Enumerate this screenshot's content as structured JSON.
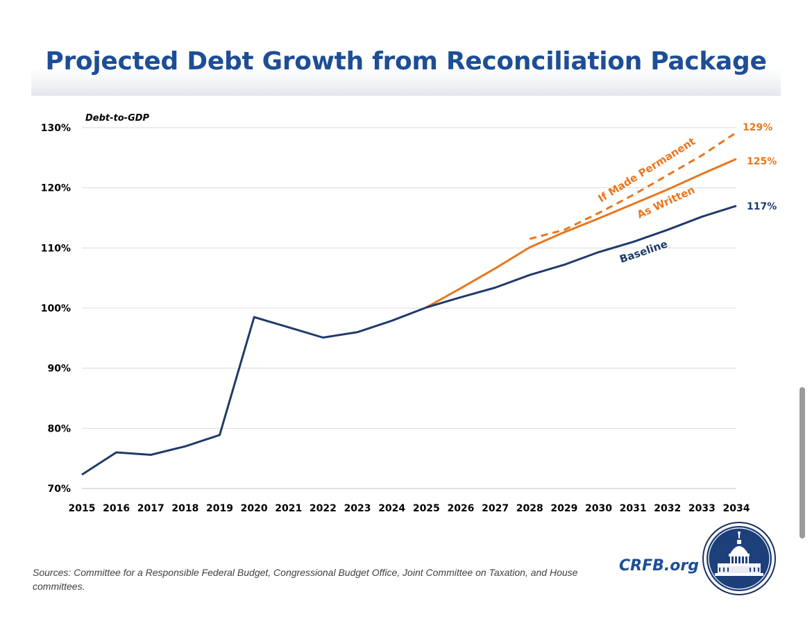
{
  "title": "Projected Debt Growth from Reconciliation Package",
  "source_note": "Sources: Committee for a Responsible Federal Budget, Congressional Budget Office, Joint Committee on Taxation, and House committees.",
  "brand": "CRFB.org",
  "colors": {
    "baseline": "#1f3a6b",
    "orange": "#e8761d",
    "title": "#1d4e96",
    "grid": "#d9d9d9"
  },
  "chart_data": {
    "type": "line",
    "title": "Projected Debt Growth from Reconciliation Package",
    "ylabel": "Debt-to-GDP",
    "xlabel": "",
    "ylim": [
      70,
      130
    ],
    "yticks": [
      70,
      80,
      90,
      100,
      110,
      120,
      130
    ],
    "ytick_labels": [
      "70%",
      "80%",
      "90%",
      "100%",
      "110%",
      "120%",
      "130%"
    ],
    "x": [
      2015,
      2016,
      2017,
      2018,
      2019,
      2020,
      2021,
      2022,
      2023,
      2024,
      2025,
      2026,
      2027,
      2028,
      2029,
      2030,
      2031,
      2032,
      2033,
      2034
    ],
    "grid": true,
    "series": [
      {
        "name": "Baseline",
        "color": "#1f3a6b",
        "style": "solid",
        "x": [
          2015,
          2016,
          2017,
          2018,
          2019,
          2020,
          2021,
          2022,
          2023,
          2024,
          2025,
          2026,
          2027,
          2028,
          2029,
          2030,
          2031,
          2032,
          2033,
          2034
        ],
        "values": [
          72.3,
          76.0,
          75.6,
          77.0,
          78.9,
          98.5,
          96.8,
          95.1,
          96.0,
          97.9,
          100.1,
          101.8,
          103.4,
          105.5,
          107.2,
          109.3,
          111.0,
          113.0,
          115.2,
          117.0
        ],
        "end_label": "117%"
      },
      {
        "name": "As Written",
        "color": "#e8761d",
        "style": "solid",
        "x": [
          2025,
          2026,
          2027,
          2028,
          2029,
          2030,
          2031,
          2032,
          2033,
          2034
        ],
        "values": [
          100.1,
          103.3,
          106.6,
          110.1,
          112.6,
          114.9,
          117.3,
          119.7,
          122.3,
          124.8
        ],
        "end_label": "125%"
      },
      {
        "name": "If Made Permanent",
        "color": "#e8761d",
        "style": "dashed",
        "x": [
          2028,
          2029,
          2030,
          2031,
          2032,
          2033,
          2034
        ],
        "values": [
          111.5,
          113.0,
          115.8,
          118.8,
          122.1,
          125.4,
          129.2
        ],
        "end_label": "129%"
      }
    ]
  }
}
